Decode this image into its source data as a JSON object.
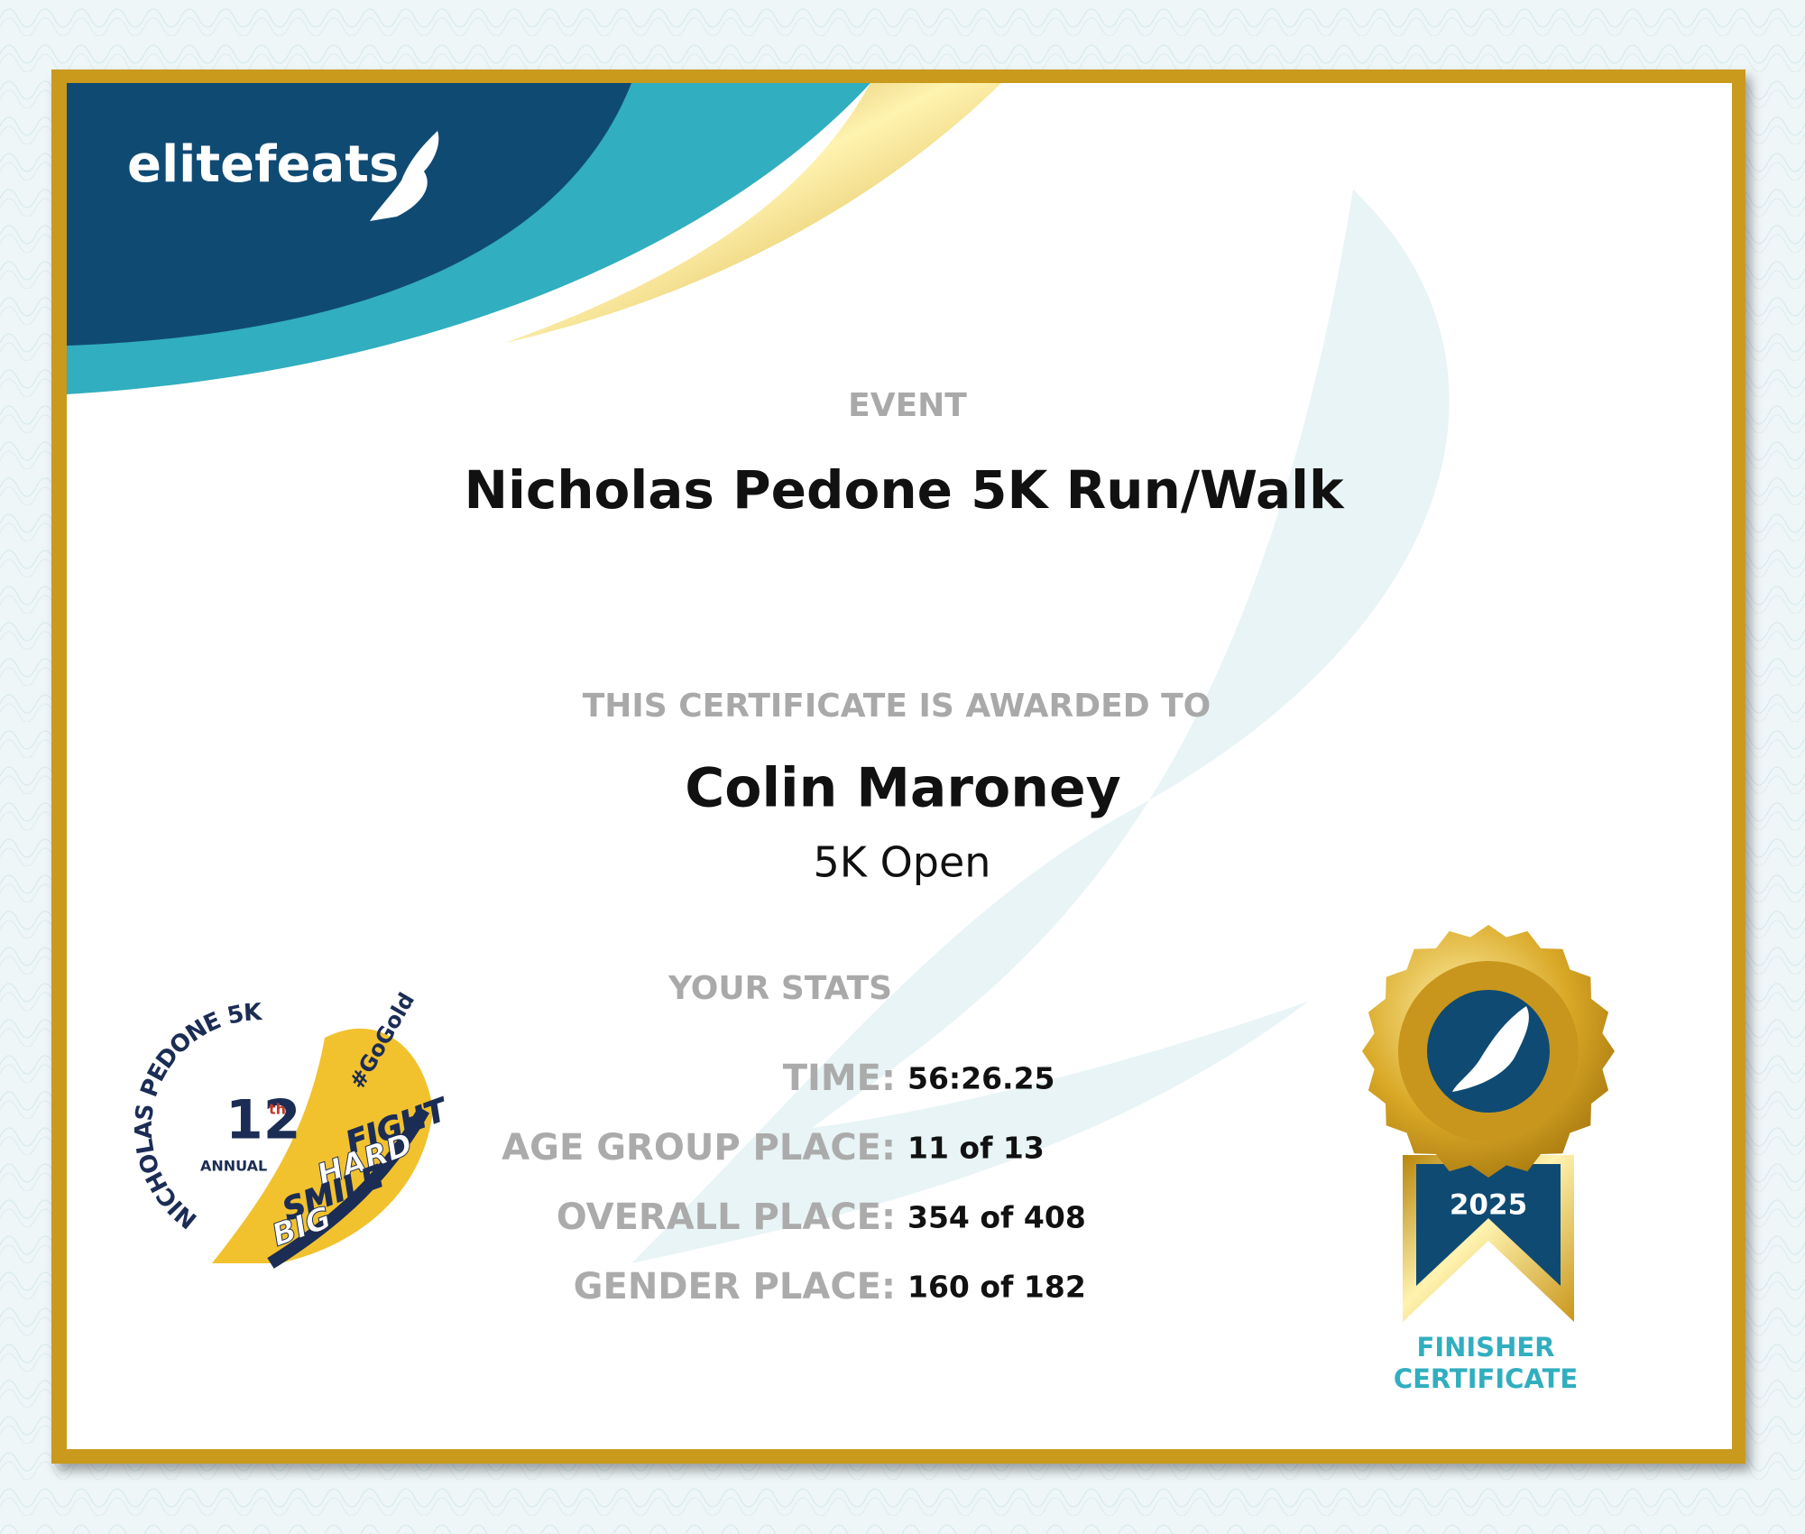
{
  "brand": {
    "name": "elitefeats"
  },
  "event": {
    "label": "EVENT",
    "name": "Nicholas Pedone 5K Run/Walk"
  },
  "award": {
    "label": "THIS CERTIFICATE IS AWARDED TO",
    "name": "Colin Maroney",
    "division": "5K Open"
  },
  "stats": {
    "title": "YOUR STATS",
    "rows": [
      [
        "TIME:",
        "56:26.25"
      ],
      [
        "AGE GROUP PLACE:",
        "11 of 13"
      ],
      [
        "OVERALL PLACE:",
        "354 of 408"
      ],
      [
        "GENDER PLACE:",
        "160 of 182"
      ]
    ]
  },
  "race_logo": {
    "arc": "NICHOLAS PEDONE 5K",
    "number": "12",
    "suffix": "th",
    "annual": "ANNUAL",
    "hashtag": "#GoGold",
    "words": [
      "FIGHT",
      "HARD",
      "SMILE",
      "BIG"
    ]
  },
  "badge": {
    "year": "2025",
    "caption": [
      "FINISHER",
      "CERTIFICATE"
    ]
  }
}
